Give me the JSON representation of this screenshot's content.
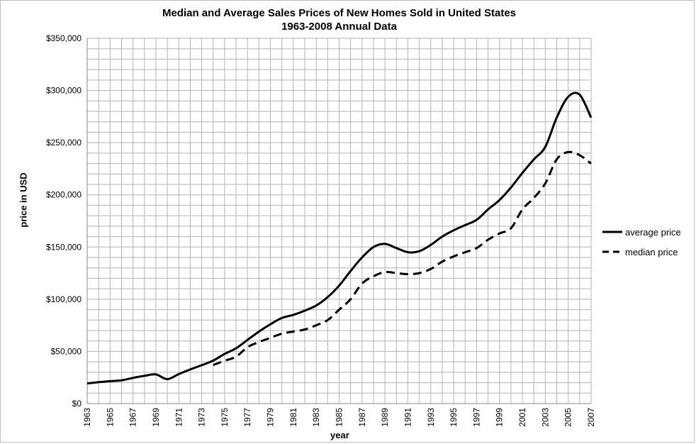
{
  "chart_data": {
    "type": "line",
    "title": "Median and Average Sales Prices of New Homes Sold in United States",
    "subtitle": "1963-2008 Annual Data",
    "xlabel": "year",
    "ylabel": "price in USD",
    "xlim": [
      1963,
      2007
    ],
    "ylim": [
      0,
      350000
    ],
    "yticks": [
      "$0",
      "$50,000",
      "$100,000",
      "$150,000",
      "$200,000",
      "$250,000",
      "$300,000",
      "$350,000"
    ],
    "ytick_values": [
      0,
      50000,
      100000,
      150000,
      200000,
      250000,
      300000,
      350000
    ],
    "xticks": [
      "1963",
      "1965",
      "1967",
      "1969",
      "1971",
      "1973",
      "1975",
      "1977",
      "1979",
      "1981",
      "1983",
      "1985",
      "1987",
      "1989",
      "1991",
      "1993",
      "1995",
      "1997",
      "1999",
      "2001",
      "2003",
      "2005",
      "2007"
    ],
    "grid": true,
    "legend_position": "right",
    "x": [
      1963,
      1964,
      1965,
      1966,
      1967,
      1968,
      1969,
      1970,
      1971,
      1972,
      1973,
      1974,
      1975,
      1976,
      1977,
      1978,
      1979,
      1980,
      1981,
      1982,
      1983,
      1984,
      1985,
      1986,
      1987,
      1988,
      1989,
      1990,
      1991,
      1992,
      1993,
      1994,
      1995,
      1996,
      1997,
      1998,
      1999,
      2000,
      2001,
      2002,
      2003,
      2004,
      2005,
      2006,
      2007
    ],
    "series": [
      {
        "name": "average price",
        "style": "solid",
        "values": [
          19300,
          20500,
          21500,
          22300,
          24600,
          26600,
          27900,
          23400,
          28300,
          32700,
          36800,
          41200,
          47600,
          53000,
          61000,
          69000,
          76000,
          82000,
          85000,
          89000,
          94000,
          102000,
          113000,
          127000,
          140000,
          150000,
          153000,
          149000,
          145000,
          146000,
          152000,
          160000,
          166000,
          171000,
          176000,
          186000,
          195000,
          207000,
          221000,
          234000,
          246000,
          274000,
          294000,
          296000,
          274000
        ]
      },
      {
        "name": "median price",
        "style": "dashed",
        "values": [
          null,
          null,
          null,
          null,
          null,
          null,
          null,
          null,
          null,
          null,
          null,
          37000,
          41000,
          45000,
          54000,
          59000,
          63000,
          67000,
          69000,
          71000,
          75000,
          80000,
          90000,
          100000,
          115000,
          122000,
          126000,
          125000,
          124000,
          125000,
          129000,
          136000,
          141000,
          145000,
          149000,
          157000,
          163000,
          168000,
          186000,
          197000,
          211000,
          234000,
          241000,
          238000,
          230000
        ]
      }
    ]
  },
  "colors": {
    "line": "#000000",
    "grid": "#b3b3b3",
    "axis": "#888888"
  }
}
